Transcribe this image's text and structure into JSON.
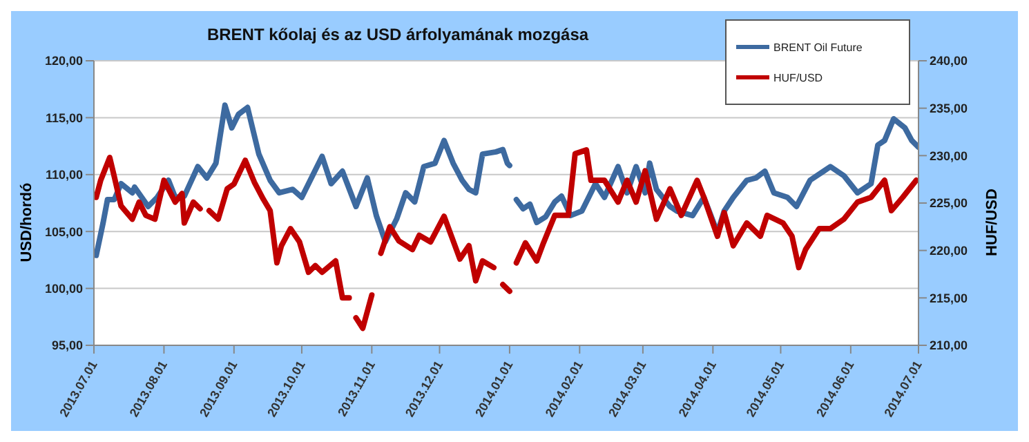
{
  "chart_data": {
    "type": "line",
    "title": "BRENT kőolaj és az USD árfolyamának mozgása",
    "ylabel": "USD/hordó",
    "y2label": "HUF/USD",
    "xlim": [
      "2013-07-01",
      "2014-07-01"
    ],
    "xticks": [
      {
        "value": "2013-07-01",
        "label": "2013.07.01"
      },
      {
        "value": "2013-08-01",
        "label": "2013.08.01"
      },
      {
        "value": "2013-09-01",
        "label": "2013.09.01"
      },
      {
        "value": "2013-10-01",
        "label": "2013.10.01"
      },
      {
        "value": "2013-11-01",
        "label": "2013.11.01"
      },
      {
        "value": "2013-12-01",
        "label": "2013.12.01"
      },
      {
        "value": "2014-01-01",
        "label": "2014.01.01"
      },
      {
        "value": "2014-02-01",
        "label": "2014.02.01"
      },
      {
        "value": "2014-03-01",
        "label": "2014.03.01"
      },
      {
        "value": "2014-04-01",
        "label": "2014.04.01"
      },
      {
        "value": "2014-05-01",
        "label": "2014.05.01"
      },
      {
        "value": "2014-06-01",
        "label": "2014.06.01"
      },
      {
        "value": "2014-07-01",
        "label": "2014.07.01"
      }
    ],
    "ylim": [
      95,
      120
    ],
    "yticks": [
      {
        "value": 95,
        "label": "95,00"
      },
      {
        "value": 100,
        "label": "100,00"
      },
      {
        "value": 105,
        "label": "105,00"
      },
      {
        "value": 110,
        "label": "110,00"
      },
      {
        "value": 115,
        "label": "115,00"
      },
      {
        "value": 120,
        "label": "120,00"
      }
    ],
    "y2lim": [
      210,
      240
    ],
    "y2ticks": [
      {
        "value": 210,
        "label": "210,00"
      },
      {
        "value": 215,
        "label": "215,00"
      },
      {
        "value": 220,
        "label": "220,00"
      },
      {
        "value": 225,
        "label": "225,00"
      },
      {
        "value": 230,
        "label": "230,00"
      },
      {
        "value": 235,
        "label": "235,00"
      },
      {
        "value": 240,
        "label": "240,00"
      }
    ],
    "grid": "y",
    "legend": "top right",
    "marker": "none",
    "line_style": "solid",
    "series": [
      {
        "name": "BRENT Oil Future",
        "color": "#3d6aa0",
        "x": [
          "2013-07-02",
          "2013-07-05",
          "2013-07-07",
          "2013-07-10",
          "2013-07-13",
          "2013-07-18",
          "2013-07-19",
          "2013-07-25",
          "2013-07-29",
          "2013-08-03",
          "2013-08-06",
          "2013-08-10",
          "2013-08-16",
          "2013-08-20",
          "2013-08-24",
          "2013-08-28",
          "2013-08-31",
          "2013-09-03",
          "2013-09-07",
          "2013-09-12",
          "2013-09-17",
          "2013-09-21",
          "2013-09-27",
          "2013-10-01",
          "2013-10-04",
          "2013-10-10",
          "2013-10-14",
          "2013-10-19",
          "2013-10-25",
          "2013-10-30",
          "2013-11-03",
          "2013-11-07",
          "2013-11-12",
          "2013-11-16",
          "2013-11-20",
          "2013-11-24",
          "2013-11-29",
          "2013-12-03",
          "2013-12-07",
          "2013-12-11",
          "2013-12-14",
          "2013-12-17",
          "2013-12-20",
          "2013-12-26",
          "2013-12-29",
          "2013-12-31",
          "2014-01-01",
          "2014-01-03",
          "2014-01-04",
          "2014-01-07",
          "2014-01-10",
          "2014-01-13",
          "2014-01-17",
          "2014-01-21",
          "2014-01-24",
          "2014-01-28",
          "2014-02-02",
          "2014-02-08",
          "2014-02-12",
          "2014-02-18",
          "2014-02-22",
          "2014-02-26",
          "2014-03-02",
          "2014-03-04",
          "2014-03-07",
          "2014-03-13",
          "2014-03-16",
          "2014-03-23",
          "2014-03-28",
          "2014-04-03",
          "2014-04-06",
          "2014-04-10",
          "2014-04-16",
          "2014-04-20",
          "2014-04-24",
          "2014-04-28",
          "2014-05-04",
          "2014-05-08",
          "2014-05-14",
          "2014-05-20",
          "2014-05-23",
          "2014-05-29",
          "2014-06-04",
          "2014-06-10",
          "2014-06-13",
          "2014-06-16",
          "2014-06-20",
          "2014-06-25",
          "2014-06-28",
          "2014-07-01"
        ],
        "values": [
          102.9,
          105.7,
          107.8,
          107.8,
          109.2,
          108.4,
          108.9,
          107.2,
          108.0,
          109.5,
          108.0,
          108.1,
          110.7,
          109.7,
          111.0,
          116.1,
          114.1,
          115.3,
          115.9,
          111.8,
          109.5,
          108.4,
          108.7,
          108.0,
          109.2,
          111.6,
          109.2,
          110.3,
          107.2,
          109.7,
          106.4,
          104.1,
          106.1,
          108.4,
          107.6,
          110.7,
          111.0,
          113.0,
          111.0,
          109.5,
          108.7,
          108.4,
          111.8,
          112.0,
          112.2,
          111.0,
          110.8,
          null,
          107.8,
          107.0,
          107.4,
          105.8,
          106.3,
          107.6,
          108.1,
          106.4,
          106.8,
          109.2,
          108.0,
          110.7,
          108.4,
          110.7,
          108.4,
          111.0,
          108.7,
          107.2,
          106.8,
          106.4,
          108.0,
          104.9,
          106.8,
          108.0,
          109.5,
          109.7,
          110.3,
          108.4,
          108.0,
          107.2,
          109.5,
          110.3,
          110.7,
          109.9,
          108.4,
          109.2,
          112.6,
          113.0,
          114.9,
          114.1,
          113.0,
          112.4
        ]
      },
      {
        "name": "HUF/USD",
        "color": "#c00000",
        "axis": "y2",
        "x": [
          "2013-07-02",
          "2013-07-04",
          "2013-07-08",
          "2013-07-10",
          "2013-07-13",
          "2013-07-18",
          "2013-07-21",
          "2013-07-24",
          "2013-07-28",
          "2013-08-01",
          "2013-08-06",
          "2013-08-09",
          "2013-08-10",
          "2013-08-14",
          "2013-08-17",
          "2013-08-19",
          "2013-08-21",
          "2013-08-25",
          "2013-08-29",
          "2013-09-01",
          "2013-09-06",
          "2013-09-10",
          "2013-09-14",
          "2013-09-17",
          "2013-09-20",
          "2013-09-22",
          "2013-09-26",
          "2013-09-30",
          "2013-10-04",
          "2013-10-07",
          "2013-10-10",
          "2013-10-16",
          "2013-10-19",
          "2013-10-22",
          "2013-10-24",
          "2013-10-25",
          "2013-10-28",
          "2013-11-01",
          "2013-11-03",
          "2013-11-05",
          "2013-11-09",
          "2013-11-13",
          "2013-11-19",
          "2013-11-22",
          "2013-11-27",
          "2013-12-03",
          "2013-12-10",
          "2013-12-14",
          "2013-12-17",
          "2013-12-20",
          "2013-12-25",
          "2013-12-28",
          "2013-12-29",
          "2014-01-01",
          "2014-01-02",
          "2014-01-04",
          "2014-01-08",
          "2014-01-13",
          "2014-01-16",
          "2014-01-21",
          "2014-01-27",
          "2014-01-30",
          "2014-02-04",
          "2014-02-06",
          "2014-02-12",
          "2014-02-18",
          "2014-02-22",
          "2014-02-26",
          "2014-03-02",
          "2014-03-07",
          "2014-03-13",
          "2014-03-18",
          "2014-03-25",
          "2014-03-28",
          "2014-04-03",
          "2014-04-06",
          "2014-04-10",
          "2014-04-16",
          "2014-04-22",
          "2014-04-25",
          "2014-05-02",
          "2014-05-06",
          "2014-05-09",
          "2014-05-12",
          "2014-05-18",
          "2014-05-23",
          "2014-05-29",
          "2014-06-04",
          "2014-06-10",
          "2014-06-16",
          "2014-06-19",
          "2014-06-24",
          "2014-06-30"
        ],
        "values": [
          225.6,
          227.4,
          229.8,
          227.8,
          224.7,
          223.3,
          225.1,
          223.7,
          223.3,
          227.4,
          225.1,
          226.0,
          222.9,
          225.1,
          224.4,
          null,
          224.2,
          223.3,
          226.5,
          227.0,
          229.5,
          227.2,
          225.4,
          224.2,
          218.7,
          220.5,
          222.3,
          220.9,
          217.7,
          218.4,
          217.7,
          218.9,
          215.0,
          215.0,
          null,
          212.9,
          211.8,
          215.3,
          null,
          219.7,
          222.5,
          221.0,
          220.1,
          221.6,
          220.9,
          223.6,
          219.1,
          220.5,
          216.8,
          218.9,
          218.2,
          null,
          216.4,
          215.7,
          null,
          218.7,
          220.8,
          218.9,
          220.8,
          223.7,
          223.7,
          230.2,
          230.6,
          227.4,
          227.4,
          225.1,
          227.4,
          225.1,
          228.4,
          223.3,
          226.5,
          223.7,
          227.4,
          225.6,
          221.5,
          224.0,
          220.5,
          222.9,
          221.5,
          223.7,
          222.9,
          221.5,
          218.2,
          220.1,
          222.3,
          222.3,
          223.3,
          225.1,
          225.6,
          227.4,
          224.2,
          225.6,
          227.4
        ]
      }
    ]
  }
}
